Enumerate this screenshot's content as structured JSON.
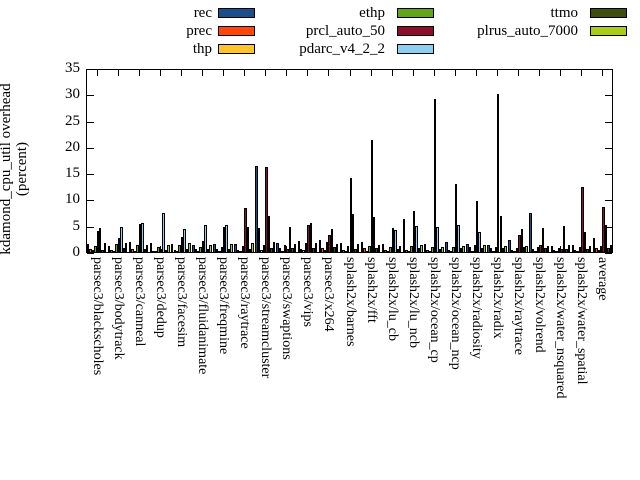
{
  "ylabel": {
    "line1": "kdamond_cpu_util overhead",
    "line2": "(percent)"
  },
  "chart_data": {
    "type": "bar",
    "title": "",
    "xlabel": "",
    "ylabel": "kdamond_cpu_util overhead (percent)",
    "ylim": [
      0,
      35
    ],
    "yticks": [
      0,
      5,
      10,
      15,
      20,
      25,
      30,
      35
    ],
    "grid": false,
    "legend_position": "top-outside-three-columns",
    "legend_columns": [
      [
        "rec",
        "prec",
        "thp"
      ],
      [
        "ethp",
        "prcl_auto_50",
        "pdarc_v4_2_2"
      ],
      [
        "ttmo",
        "plrus_auto_7000"
      ]
    ],
    "categories": [
      "parsec3/blackscholes",
      "parsec3/bodytrack",
      "parsec3/canneal",
      "parsec3/dedup",
      "parsec3/facesim",
      "parsec3/fluidanimate",
      "parsec3/freqmine",
      "parsec3/raytrace",
      "parsec3/streamcluster",
      "parsec3/swaptions",
      "parsec3/vips",
      "parsec3/x264",
      "splash2x/barnes",
      "splash2x/fft",
      "splash2x/lu_cb",
      "splash2x/lu_ncb",
      "splash2x/ocean_cp",
      "splash2x/ocean_ncp",
      "splash2x/radiosity",
      "splash2x/radix",
      "splash2x/raytrace",
      "splash2x/volrend",
      "splash2x/water_nsquared",
      "splash2x/water_spatial",
      "average"
    ],
    "series": [
      {
        "name": "rec",
        "color": "#1a4f8c",
        "values": [
          1.8,
          1.4,
          2.1,
          1.9,
          1.7,
          1.6,
          1.7,
          1.8,
          16.5,
          1.9,
          2.2,
          2.4,
          1.9,
          2.1,
          1.7,
          6.5,
          1.7,
          2.0,
          1.8,
          1.5,
          2.5,
          7.6,
          1.3,
          1.5,
          2.8
        ]
      },
      {
        "name": "prec",
        "color": "#fc4708",
        "values": [
          0.8,
          0.6,
          0.7,
          0.4,
          0.5,
          0.7,
          0.8,
          0.5,
          4.7,
          0.9,
          0.8,
          0.9,
          0.6,
          0.9,
          0.5,
          0.6,
          0.5,
          0.6,
          1.1,
          0.9,
          0.6,
          0.8,
          0.5,
          0.6,
          1.0
        ]
      },
      {
        "name": "thp",
        "color": "#fec32d",
        "values": [
          0.5,
          0.4,
          0.4,
          0.3,
          0.3,
          0.3,
          0.4,
          0.4,
          0.6,
          0.3,
          0.5,
          0.5,
          0.3,
          0.4,
          0.3,
          0.4,
          0.3,
          0.3,
          0.4,
          0.4,
          0.4,
          0.4,
          0.3,
          0.3,
          0.6
        ]
      },
      {
        "name": "ethp",
        "color": "#61a51e",
        "values": [
          1.4,
          1.7,
          1.5,
          1.1,
          1.5,
          1.1,
          1.2,
          1.3,
          1.5,
          1.5,
          1.9,
          2.1,
          1.3,
          1.4,
          1.2,
          1.3,
          1.2,
          1.1,
          1.5,
          1.2,
          1.0,
          1.2,
          1.0,
          1.1,
          1.4
        ]
      },
      {
        "name": "prcl_auto_50",
        "color": "#8b0f2a",
        "values": [
          4.2,
          2.8,
          5.6,
          0.7,
          3.1,
          2.2,
          4.9,
          8.5,
          16.3,
          0.7,
          5.4,
          3.4,
          14.3,
          21.5,
          4.7,
          7.9,
          29.3,
          13.1,
          9.8,
          30.3,
          3.5,
          1.5,
          0.8,
          12.5,
          8.8
        ]
      },
      {
        "name": "pdarc_v4_2_2",
        "color": "#8ecef0",
        "values": [
          4.7,
          4.9,
          5.8,
          7.6,
          4.6,
          5.3,
          5.3,
          4.9,
          7.1,
          4.9,
          5.7,
          4.6,
          7.4,
          6.9,
          4.4,
          5.1,
          5.0,
          5.3,
          4.0,
          7.0,
          4.6,
          4.7,
          5.1,
          3.9,
          5.3
        ]
      },
      {
        "name": "ttmo",
        "color": "#404e0d",
        "values": [
          0.6,
          1.0,
          0.8,
          0.6,
          0.7,
          0.7,
          0.8,
          0.8,
          1.0,
          0.9,
          1.0,
          1.2,
          0.8,
          1.0,
          0.8,
          0.9,
          0.8,
          0.9,
          0.9,
          1.0,
          1.2,
          0.9,
          0.8,
          0.7,
          1.0
        ]
      },
      {
        "name": "plrus_auto_7000",
        "color": "#a9ce14",
        "values": [
          1.9,
          1.9,
          1.5,
          1.5,
          1.9,
          1.6,
          1.7,
          1.9,
          2.0,
          1.8,
          1.9,
          1.7,
          1.8,
          1.6,
          1.4,
          1.5,
          1.2,
          1.3,
          1.5,
          1.3,
          1.4,
          1.4,
          1.6,
          1.4,
          1.6
        ]
      }
    ]
  }
}
